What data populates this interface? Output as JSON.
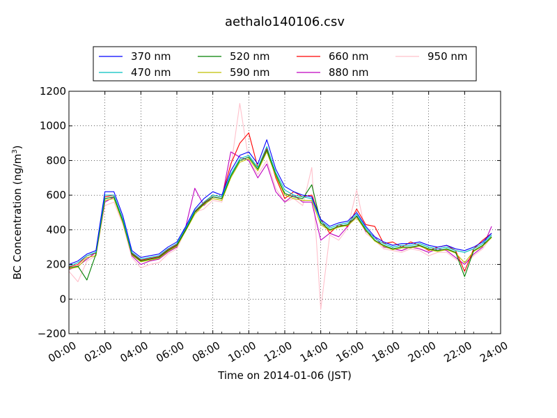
{
  "chart_data": {
    "type": "line",
    "title": "aethalo140106.csv",
    "xlabel": "Time on 2014-01-06 (JST)",
    "ylabel": "BC Concentration (ng/m",
    "ylabel_sup": "3",
    "ylabel_end": ")",
    "xlim": [
      0,
      24
    ],
    "ylim": [
      -200,
      1200
    ],
    "grid": true,
    "legend_position": "top-center",
    "x_ticks": [
      {
        "value": 0,
        "label": "00:00"
      },
      {
        "value": 2,
        "label": "02:00"
      },
      {
        "value": 4,
        "label": "04:00"
      },
      {
        "value": 6,
        "label": "06:00"
      },
      {
        "value": 8,
        "label": "08:00"
      },
      {
        "value": 10,
        "label": "10:00"
      },
      {
        "value": 12,
        "label": "12:00"
      },
      {
        "value": 14,
        "label": "14:00"
      },
      {
        "value": 16,
        "label": "16:00"
      },
      {
        "value": 18,
        "label": "18:00"
      },
      {
        "value": 20,
        "label": "20:00"
      },
      {
        "value": 22,
        "label": "22:00"
      },
      {
        "value": 24,
        "label": "24:00"
      }
    ],
    "y_ticks": [
      {
        "value": -200,
        "label": "−200"
      },
      {
        "value": 0,
        "label": "0"
      },
      {
        "value": 200,
        "label": "200"
      },
      {
        "value": 400,
        "label": "400"
      },
      {
        "value": 600,
        "label": "600"
      },
      {
        "value": 800,
        "label": "800"
      },
      {
        "value": 1000,
        "label": "1000"
      },
      {
        "value": 1200,
        "label": "1200"
      }
    ],
    "x": [
      0.0,
      0.5,
      1.0,
      1.5,
      2.0,
      2.5,
      3.0,
      3.5,
      4.0,
      4.5,
      5.0,
      5.5,
      6.0,
      6.5,
      7.0,
      7.5,
      8.0,
      8.5,
      9.0,
      9.5,
      10.0,
      10.5,
      11.0,
      11.5,
      12.0,
      12.5,
      13.0,
      13.5,
      14.0,
      14.5,
      15.0,
      15.5,
      16.0,
      16.5,
      17.0,
      17.5,
      18.0,
      18.5,
      19.0,
      19.5,
      20.0,
      20.5,
      21.0,
      21.5,
      22.0,
      22.5,
      23.0,
      23.5
    ],
    "series": [
      {
        "name": "370 nm",
        "color": "#0000ff",
        "values": [
          200,
          220,
          260,
          280,
          620,
          620,
          480,
          280,
          240,
          250,
          260,
          300,
          330,
          420,
          520,
          580,
          620,
          600,
          740,
          830,
          850,
          780,
          920,
          750,
          650,
          620,
          600,
          590,
          460,
          420,
          440,
          450,
          500,
          420,
          360,
          330,
          310,
          320,
          320,
          330,
          310,
          300,
          310,
          290,
          280,
          300,
          330,
          380
        ]
      },
      {
        "name": "470 nm",
        "color": "#00bfbf",
        "values": [
          190,
          210,
          250,
          270,
          600,
          600,
          460,
          270,
          230,
          240,
          250,
          290,
          320,
          410,
          510,
          560,
          600,
          590,
          720,
          810,
          830,
          760,
          880,
          730,
          630,
          600,
          590,
          580,
          450,
          410,
          430,
          440,
          490,
          410,
          350,
          320,
          300,
          310,
          310,
          320,
          300,
          290,
          300,
          280,
          270,
          290,
          320,
          370
        ]
      },
      {
        "name": "520 nm",
        "color": "#008000",
        "values": [
          180,
          190,
          110,
          260,
          580,
          590,
          450,
          260,
          220,
          230,
          240,
          280,
          310,
          400,
          500,
          550,
          590,
          580,
          710,
          800,
          820,
          750,
          860,
          720,
          610,
          590,
          580,
          660,
          440,
          400,
          420,
          430,
          480,
          400,
          340,
          310,
          290,
          300,
          300,
          310,
          290,
          280,
          290,
          270,
          130,
          280,
          310,
          360
        ]
      },
      {
        "name": "590 nm",
        "color": "#bfbf00",
        "values": [
          175,
          185,
          240,
          250,
          570,
          580,
          440,
          255,
          215,
          225,
          235,
          275,
          305,
          395,
          490,
          545,
          580,
          570,
          700,
          790,
          810,
          740,
          850,
          710,
          600,
          580,
          570,
          570,
          430,
          395,
          415,
          425,
          470,
          395,
          335,
          305,
          285,
          295,
          295,
          305,
          285,
          275,
          285,
          265,
          210,
          275,
          305,
          355
        ]
      },
      {
        "name": "660 nm",
        "color": "#ff0000",
        "values": [
          185,
          200,
          250,
          265,
          590,
          600,
          460,
          265,
          225,
          235,
          245,
          285,
          315,
          405,
          505,
          555,
          600,
          590,
          780,
          900,
          960,
          760,
          870,
          700,
          580,
          620,
          590,
          600,
          460,
          380,
          430,
          420,
          520,
          430,
          420,
          320,
          330,
          300,
          330,
          310,
          280,
          300,
          310,
          280,
          160,
          290,
          340,
          380
        ]
      },
      {
        "name": "880 nm",
        "color": "#bf00bf",
        "values": [
          170,
          190,
          230,
          270,
          560,
          590,
          450,
          250,
          200,
          220,
          230,
          270,
          300,
          420,
          640,
          540,
          590,
          580,
          850,
          820,
          800,
          700,
          780,
          620,
          560,
          600,
          560,
          560,
          340,
          380,
          360,
          420,
          480,
          390,
          360,
          300,
          290,
          280,
          300,
          290,
          270,
          290,
          280,
          240,
          200,
          260,
          300,
          420
        ]
      },
      {
        "name": "950 nm",
        "color": "#ffc0cb",
        "values": [
          160,
          100,
          220,
          250,
          540,
          560,
          430,
          240,
          180,
          200,
          210,
          260,
          290,
          400,
          500,
          520,
          570,
          560,
          760,
          1130,
          800,
          720,
          800,
          640,
          560,
          580,
          540,
          760,
          -60,
          370,
          340,
          410,
          630,
          380,
          340,
          290,
          280,
          270,
          290,
          280,
          250,
          270,
          270,
          230,
          200,
          250,
          290,
          360
        ]
      }
    ]
  }
}
